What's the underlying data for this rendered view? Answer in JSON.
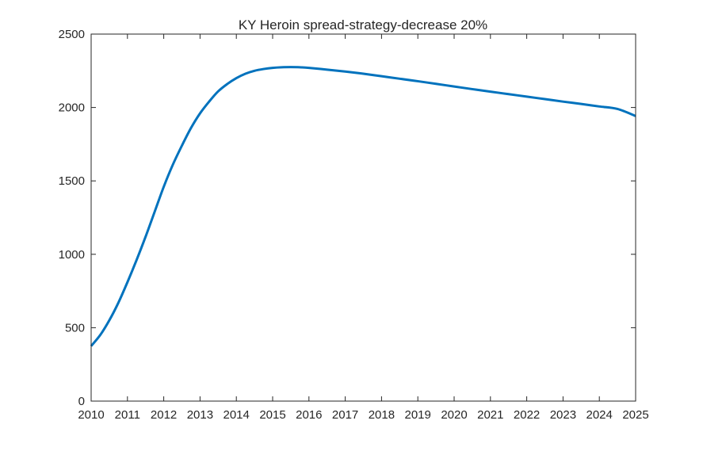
{
  "chart_data": {
    "type": "line",
    "title": "KY Heroin spread-strategy-decrease 20%",
    "xlabel": "",
    "ylabel": "",
    "xlim": [
      2010,
      2025
    ],
    "ylim": [
      0,
      2500
    ],
    "x_ticks": [
      "2010",
      "2011",
      "2012",
      "2013",
      "2014",
      "2015",
      "2016",
      "2017",
      "2018",
      "2019",
      "2020",
      "2021",
      "2022",
      "2023",
      "2024",
      "2025"
    ],
    "y_ticks": [
      "0",
      "500",
      "1000",
      "1500",
      "2000",
      "2500"
    ],
    "grid": false,
    "legend": "none",
    "series": [
      {
        "color": "#0072BD",
        "x": [
          2010,
          2010.25,
          2010.5,
          2010.75,
          2011,
          2011.25,
          2011.5,
          2011.75,
          2012,
          2012.25,
          2012.5,
          2012.75,
          2013,
          2013.25,
          2013.5,
          2013.75,
          2014,
          2014.25,
          2014.5,
          2014.75,
          2015,
          2015.25,
          2015.5,
          2015.75,
          2016,
          2016.5,
          2017,
          2017.5,
          2018,
          2018.5,
          2019,
          2019.5,
          2020,
          2020.5,
          2021,
          2021.5,
          2022,
          2022.5,
          2023,
          2023.5,
          2024,
          2024.5,
          2025
        ],
        "y": [
          375,
          450,
          550,
          670,
          810,
          960,
          1120,
          1290,
          1460,
          1610,
          1740,
          1860,
          1960,
          2040,
          2110,
          2160,
          2200,
          2230,
          2250,
          2262,
          2270,
          2274,
          2275,
          2274,
          2270,
          2258,
          2245,
          2230,
          2213,
          2196,
          2179,
          2161,
          2143,
          2125,
          2108,
          2091,
          2074,
          2057,
          2040,
          2024,
          2007,
          1990,
          1942
        ]
      }
    ]
  }
}
